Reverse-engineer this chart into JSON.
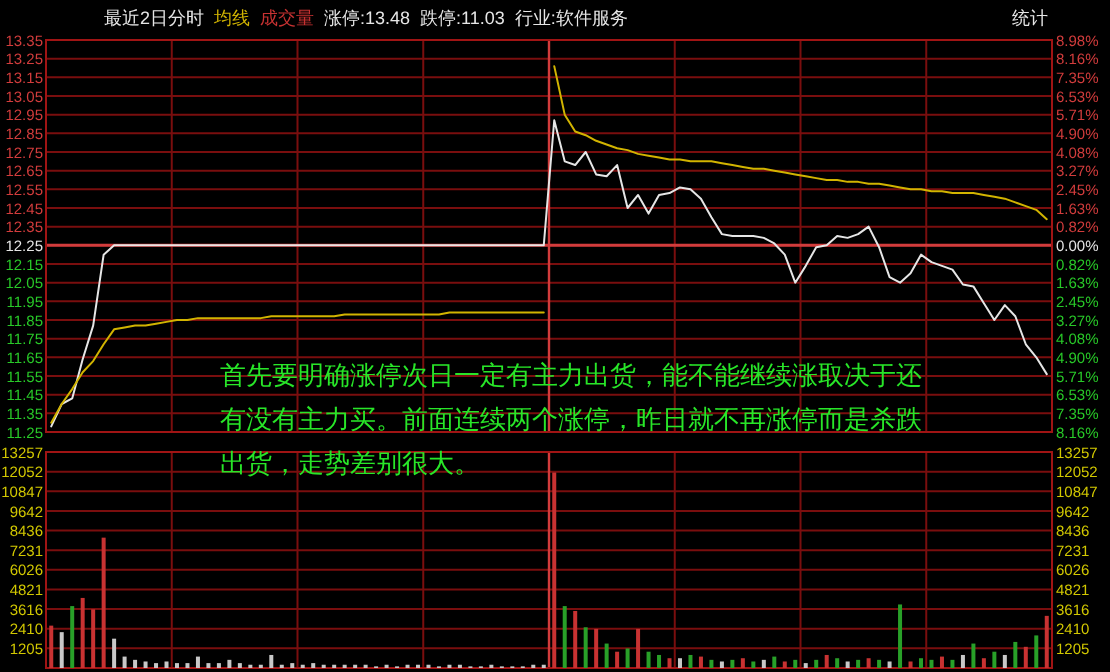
{
  "chart_data": [
    {
      "type": "line",
      "title": "最近2日分时",
      "grid": true,
      "annotations": [
        "涨停:13.48",
        "跌停:11.03",
        "行业:软件服务",
        "统计",
        "首先要明确涨停次日一定有主力出货，能不能继续涨取决于还有没有主力买。前面连续两个涨停，昨日就不再涨停而是杀跌出货，走势差别很大。"
      ],
      "categories": [
        null,
        null,
        null,
        null,
        null,
        null,
        null,
        null,
        null,
        null,
        null,
        null,
        null,
        null,
        null,
        null,
        null,
        null,
        null,
        null,
        null,
        null,
        null,
        null,
        null,
        null,
        null,
        null,
        null,
        null,
        null,
        null,
        null,
        null,
        null,
        null,
        null,
        null,
        null,
        null,
        null,
        null,
        null,
        null,
        null,
        null,
        null,
        null,
        null,
        null,
        null,
        null,
        null,
        null,
        null,
        null,
        null,
        null,
        null,
        null,
        null,
        null,
        null,
        null,
        null,
        null,
        null,
        null,
        null,
        null,
        null,
        null,
        null,
        null,
        null,
        null,
        null,
        null,
        null,
        null,
        null,
        null,
        null,
        null,
        null,
        null,
        null,
        null,
        null,
        null,
        null,
        null,
        null,
        null,
        null,
        null
      ],
      "ylim": [
        11.25,
        13.35
      ],
      "yticks": [
        {
          "value": 11.25,
          "label": "11.25"
        },
        {
          "value": 11.35,
          "label": "11.35"
        },
        {
          "value": 11.45,
          "label": "11.45"
        },
        {
          "value": 11.55,
          "label": "11.55"
        },
        {
          "value": 11.65,
          "label": "11.65"
        },
        {
          "value": 11.75,
          "label": "11.75"
        },
        {
          "value": 11.85,
          "label": "11.85"
        },
        {
          "value": 11.95,
          "label": "11.95"
        },
        {
          "value": 12.05,
          "label": "12.05"
        },
        {
          "value": 12.15,
          "label": "12.15"
        },
        {
          "value": 12.25,
          "label": "12.25"
        },
        {
          "value": 12.35,
          "label": "12.35"
        },
        {
          "value": 12.45,
          "label": "12.45"
        },
        {
          "value": 12.55,
          "label": "12.55"
        },
        {
          "value": 12.65,
          "label": "12.65"
        },
        {
          "value": 12.75,
          "label": "12.75"
        },
        {
          "value": 12.85,
          "label": "12.85"
        },
        {
          "value": 12.95,
          "label": "12.95"
        },
        {
          "value": 13.05,
          "label": "13.05"
        },
        {
          "value": 13.15,
          "label": "13.15"
        },
        {
          "value": 13.25,
          "label": "13.25"
        },
        {
          "value": 13.35,
          "label": "13.35"
        }
      ],
      "y2lim": [
        -8.16,
        8.98
      ],
      "y2ticks": [
        {
          "value": -8.16,
          "label": "8.16%"
        },
        {
          "value": -7.35,
          "label": "7.35%"
        },
        {
          "value": -6.53,
          "label": "6.53%"
        },
        {
          "value": -5.71,
          "label": "5.71%"
        },
        {
          "value": -4.9,
          "label": "4.90%"
        },
        {
          "value": -4.08,
          "label": "4.08%"
        },
        {
          "value": -3.27,
          "label": "3.27%"
        },
        {
          "value": -2.45,
          "label": "2.45%"
        },
        {
          "value": -1.63,
          "label": "1.63%"
        },
        {
          "value": -0.82,
          "label": "0.82%"
        },
        {
          "value": 0,
          "label": "0.00%"
        },
        {
          "value": 0.82,
          "label": "0.82%"
        },
        {
          "value": 1.63,
          "label": "1.63%"
        },
        {
          "value": 2.45,
          "label": "2.45%"
        },
        {
          "value": 3.27,
          "label": "3.27%"
        },
        {
          "value": 4.08,
          "label": "4.08%"
        },
        {
          "value": 4.9,
          "label": "4.90%"
        },
        {
          "value": 5.71,
          "label": "5.71%"
        },
        {
          "value": 6.53,
          "label": "6.53%"
        },
        {
          "value": 7.35,
          "label": "7.35%"
        },
        {
          "value": 8.16,
          "label": "8.16%"
        },
        {
          "value": 8.98,
          "label": "8.98%"
        }
      ],
      "ref_lines": [
        {
          "axis": "y",
          "value": 12.25,
          "color": "#d23c3c"
        }
      ],
      "series": [
        {
          "color": "#e6e6e6",
          "values": [
            11.28,
            11.4,
            11.43,
            11.64,
            11.82,
            12.2,
            12.25,
            12.25,
            12.25,
            12.25,
            12.25,
            12.25,
            12.25,
            12.25,
            12.25,
            12.25,
            12.25,
            12.25,
            12.25,
            12.25,
            12.25,
            12.25,
            12.25,
            12.25,
            12.25,
            12.25,
            12.25,
            12.25,
            12.25,
            12.25,
            12.25,
            12.25,
            12.25,
            12.25,
            12.25,
            12.25,
            12.25,
            12.25,
            12.25,
            12.25,
            12.25,
            12.25,
            12.25,
            12.25,
            12.25,
            12.25,
            12.25,
            12.25,
            12.92,
            12.7,
            12.68,
            12.75,
            12.63,
            12.62,
            12.68,
            12.45,
            12.52,
            12.42,
            12.52,
            12.53,
            12.56,
            12.55,
            12.5,
            12.4,
            12.31,
            12.3,
            12.3,
            12.3,
            12.29,
            12.26,
            12.2,
            12.05,
            12.14,
            12.24,
            12.25,
            12.3,
            12.29,
            12.31,
            12.35,
            12.24,
            12.08,
            12.05,
            12.1,
            12.2,
            12.16,
            12.14,
            12.12,
            12.04,
            12.03,
            11.94,
            11.85,
            11.93,
            11.87,
            11.72,
            11.65,
            11.56
          ]
        },
        {
          "name": "均线",
          "color": "#d2b400",
          "values": [
            11.3,
            11.4,
            11.48,
            11.57,
            11.63,
            11.72,
            11.8,
            11.81,
            11.82,
            11.82,
            11.83,
            11.84,
            11.85,
            11.85,
            11.86,
            11.86,
            11.86,
            11.86,
            11.86,
            11.86,
            11.86,
            11.87,
            11.87,
            11.87,
            11.87,
            11.87,
            11.87,
            11.87,
            11.88,
            11.88,
            11.88,
            11.88,
            11.88,
            11.88,
            11.88,
            11.88,
            11.88,
            11.88,
            11.89,
            11.89,
            11.89,
            11.89,
            11.89,
            11.89,
            11.89,
            11.89,
            11.89,
            11.89,
            null,
            null,
            null,
            null,
            null,
            null,
            null,
            null,
            null,
            null,
            null,
            null,
            null,
            null,
            null,
            null,
            null,
            null,
            null,
            null,
            null,
            null,
            null,
            null,
            null,
            null,
            null,
            null,
            null,
            null,
            null,
            null,
            null,
            null,
            null,
            null,
            null,
            null,
            null,
            null,
            null,
            null,
            null,
            null,
            null,
            null,
            null,
            null
          ]
        },
        {
          "color": "#d2b400",
          "values": [
            null,
            null,
            null,
            null,
            null,
            null,
            null,
            null,
            null,
            null,
            null,
            null,
            null,
            null,
            null,
            null,
            null,
            null,
            null,
            null,
            null,
            null,
            null,
            null,
            null,
            null,
            null,
            null,
            null,
            null,
            null,
            null,
            null,
            null,
            null,
            null,
            null,
            null,
            null,
            null,
            null,
            null,
            null,
            null,
            null,
            null,
            null,
            null,
            13.21,
            12.95,
            12.86,
            12.84,
            12.81,
            12.79,
            12.77,
            12.76,
            12.74,
            12.73,
            12.72,
            12.71,
            12.71,
            12.7,
            12.7,
            12.7,
            12.69,
            12.68,
            12.67,
            12.66,
            12.66,
            12.65,
            12.64,
            12.63,
            12.62,
            12.61,
            12.6,
            12.6,
            12.59,
            12.59,
            12.58,
            12.58,
            12.57,
            12.56,
            12.55,
            12.55,
            12.54,
            12.54,
            12.53,
            12.53,
            12.53,
            12.52,
            12.51,
            12.5,
            12.48,
            12.46,
            12.44,
            12.39
          ]
        }
      ]
    },
    {
      "type": "bar",
      "grid": true,
      "categories": [
        null,
        null,
        null,
        null,
        null,
        null,
        null,
        null,
        null,
        null,
        null,
        null,
        null,
        null,
        null,
        null,
        null,
        null,
        null,
        null,
        null,
        null,
        null,
        null,
        null,
        null,
        null,
        null,
        null,
        null,
        null,
        null,
        null,
        null,
        null,
        null,
        null,
        null,
        null,
        null,
        null,
        null,
        null,
        null,
        null,
        null,
        null,
        null,
        null,
        null,
        null,
        null,
        null,
        null,
        null,
        null,
        null,
        null,
        null,
        null,
        null,
        null,
        null,
        null,
        null,
        null,
        null,
        null,
        null,
        null,
        null,
        null,
        null,
        null,
        null,
        null,
        null,
        null,
        null,
        null,
        null,
        null,
        null,
        null,
        null,
        null,
        null,
        null,
        null,
        null,
        null,
        null,
        null,
        null,
        null,
        null
      ],
      "ylim": [
        0,
        13257
      ],
      "yticks": [
        1205,
        2410,
        3616,
        4821,
        6026,
        7231,
        8436,
        9642,
        10847,
        12052,
        13257
      ],
      "y2lim": [
        0,
        13257
      ],
      "y2ticks": [
        1205,
        2410,
        3616,
        4821,
        6026,
        7231,
        8436,
        9642,
        10847,
        12052,
        13257
      ],
      "series": [
        {
          "name": "成交量",
          "color": "#c83232",
          "values": [
            2600,
            2200,
            3800,
            4300,
            3600,
            8000,
            1800,
            700,
            500,
            400,
            300,
            400,
            300,
            300,
            700,
            300,
            300,
            500,
            300,
            200,
            200,
            800,
            200,
            300,
            200,
            300,
            200,
            200,
            200,
            200,
            200,
            100,
            200,
            100,
            200,
            200,
            200,
            100,
            200,
            200,
            100,
            100,
            200,
            100,
            100,
            100,
            200,
            200,
            12000,
            3800,
            3500,
            2500,
            2400,
            1500,
            1000,
            1200,
            2400,
            1000,
            800,
            600,
            600,
            800,
            700,
            500,
            400,
            500,
            600,
            400,
            500,
            700,
            400,
            500,
            300,
            500,
            800,
            600,
            400,
            500,
            600,
            500,
            400,
            3900,
            400,
            600,
            500,
            700,
            500,
            800,
            1500,
            600,
            1000,
            800,
            1600,
            1300,
            2000,
            3200
          ],
          "colors": [
            "#c83232",
            "#c8c8c8",
            "#28a028",
            "#c83232",
            "#c83232",
            "#c83232",
            "#c8c8c8",
            "#c8c8c8",
            "#c8c8c8",
            "#c8c8c8",
            "#c8c8c8",
            "#c8c8c8",
            "#c8c8c8",
            "#c8c8c8",
            "#c8c8c8",
            "#c8c8c8",
            "#c8c8c8",
            "#c8c8c8",
            "#c8c8c8",
            "#c8c8c8",
            "#c8c8c8",
            "#c8c8c8",
            "#c8c8c8",
            "#c8c8c8",
            "#c8c8c8",
            "#c8c8c8",
            "#c8c8c8",
            "#c8c8c8",
            "#c8c8c8",
            "#c8c8c8",
            "#c8c8c8",
            "#c8c8c8",
            "#c8c8c8",
            "#c8c8c8",
            "#c8c8c8",
            "#c8c8c8",
            "#c8c8c8",
            "#c8c8c8",
            "#c8c8c8",
            "#c8c8c8",
            "#c8c8c8",
            "#c8c8c8",
            "#c8c8c8",
            "#c8c8c8",
            "#c8c8c8",
            "#c8c8c8",
            "#c8c8c8",
            "#c8c8c8",
            "#c83232",
            "#28a028",
            "#c83232",
            "#28a028",
            "#c83232",
            "#28a028",
            "#c83232",
            "#28a028",
            "#c83232",
            "#28a028",
            "#28a028",
            "#c83232",
            "#c8c8c8",
            "#28a028",
            "#c83232",
            "#28a028",
            "#c8c8c8",
            "#28a028",
            "#c83232",
            "#28a028",
            "#c8c8c8",
            "#28a028",
            "#c83232",
            "#28a028",
            "#c8c8c8",
            "#28a028",
            "#c83232",
            "#28a028",
            "#c8c8c8",
            "#28a028",
            "#c83232",
            "#28a028",
            "#c8c8c8",
            "#28a028",
            "#c83232",
            "#28a028",
            "#28a028",
            "#c83232",
            "#28a028",
            "#c8c8c8",
            "#28a028",
            "#c83232",
            "#28a028",
            "#c8c8c8",
            "#28a028",
            "#c83232",
            "#28a028",
            "#c83232"
          ]
        }
      ]
    }
  ]
}
